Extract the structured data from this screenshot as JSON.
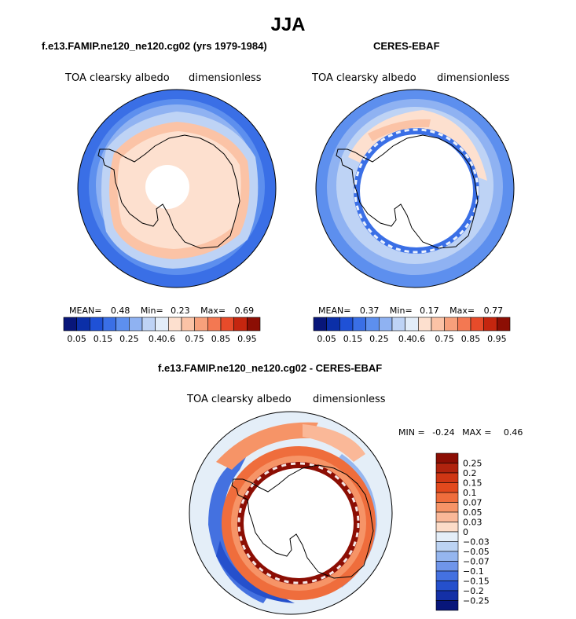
{
  "figure": {
    "title": "JJA"
  },
  "chart_data": [
    {
      "type": "heatmap",
      "title": "f.e13.FAMIP.ne120_ne120.cg02 (yrs 1979-1984)",
      "left_label": "TOA clearsky albedo",
      "right_label": "dimensionless",
      "projection": "south polar stereographic",
      "stats": {
        "mean_label": "MEAN=",
        "mean": "0.48",
        "min_label": "Min=",
        "min": "0.23",
        "max_label": "Max=",
        "max": "0.69"
      },
      "colorbar_labels": [
        "0.05",
        "0.15",
        "0.25",
        "0.4",
        "0.6",
        "0.75",
        "0.85",
        "0.95"
      ],
      "colorbar_colors": [
        "#08167a",
        "#0b2fa8",
        "#1f51d6",
        "#3a6fe6",
        "#5d8fee",
        "#8fb2f2",
        "#bed3f5",
        "#e3edf9",
        "#fde0cf",
        "#fbc3a6",
        "#f7a07b",
        "#f37852",
        "#e74b2a",
        "#c5260f",
        "#8c0e04"
      ]
    },
    {
      "type": "heatmap",
      "title": "CERES-EBAF",
      "left_label": "TOA clearsky albedo",
      "right_label": "dimensionless",
      "projection": "south polar stereographic",
      "stats": {
        "mean_label": "MEAN=",
        "mean": "0.37",
        "min_label": "Min=",
        "min": "0.17",
        "max_label": "Max=",
        "max": "0.77"
      },
      "colorbar_labels": [
        "0.05",
        "0.15",
        "0.25",
        "0.4",
        "0.6",
        "0.75",
        "0.85",
        "0.95"
      ],
      "colorbar_colors": [
        "#08167a",
        "#0b2fa8",
        "#1f51d6",
        "#3a6fe6",
        "#5d8fee",
        "#8fb2f2",
        "#bed3f5",
        "#e3edf9",
        "#fde0cf",
        "#fbc3a6",
        "#f7a07b",
        "#f37852",
        "#e74b2a",
        "#c5260f",
        "#8c0e04"
      ]
    },
    {
      "type": "heatmap",
      "title": "f.e13.FAMIP.ne120_ne120.cg02 - CERES-EBAF",
      "left_label": "TOA clearsky albedo",
      "right_label": "dimensionless",
      "projection": "south polar stereographic",
      "stats": {
        "min_label": "MIN =",
        "min": "-0.24",
        "max_label": "MAX =",
        "max": "0.46"
      },
      "colorbar_labels": [
        "0.25",
        "0.2",
        "0.15",
        "0.1",
        "0.07",
        "0.05",
        "0.03",
        "0",
        "−0.03",
        "−0.05",
        "−0.07",
        "−0.1",
        "−0.15",
        "−0.2",
        "−0.25"
      ],
      "colorbar_colors": [
        "#8c0e04",
        "#b0230e",
        "#cf3614",
        "#e2491d",
        "#ef6d3c",
        "#f69467",
        "#fab898",
        "#fcdcc8",
        "#e4eef8",
        "#bcd3f3",
        "#95b6ef",
        "#6f95ea",
        "#4471e0",
        "#2550cc",
        "#1430a6",
        "#08167a"
      ]
    }
  ]
}
